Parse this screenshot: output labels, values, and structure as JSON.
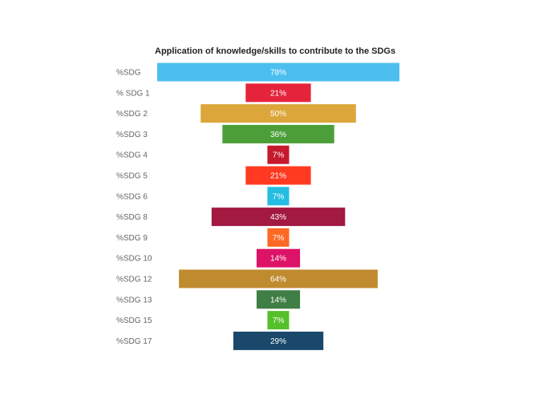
{
  "chart_data": {
    "type": "bar",
    "orientation": "horizontal-funnel",
    "title": "Application of knowledge/skills to contribute to the SDGs",
    "categories": [
      "%SDG",
      "% SDG 1",
      "%SDG 2",
      "%SDG 3",
      "%SDG 4",
      "%SDG 5",
      "%SDG 6",
      "%SDG 8",
      "%SDG 9",
      "%SDG 10",
      "%SDG 12",
      "%SDG 13",
      "%SDG 15",
      "%SDG 17"
    ],
    "values": [
      78,
      21,
      50,
      36,
      7,
      21,
      7,
      43,
      7,
      14,
      64,
      14,
      7,
      29
    ],
    "value_labels": [
      "78%",
      "21%",
      "50%",
      "36%",
      "7%",
      "21%",
      "7%",
      "43%",
      "7%",
      "14%",
      "64%",
      "14%",
      "7%",
      "29%"
    ],
    "colors": [
      "#4cbfef",
      "#e5243b",
      "#dda63a",
      "#4c9f38",
      "#c5192d",
      "#ff3a21",
      "#26bde2",
      "#a21942",
      "#fd6925",
      "#dd1367",
      "#bf8b2e",
      "#3f7e44",
      "#56c02b",
      "#19486a"
    ],
    "xlim": [
      0,
      78
    ],
    "grid": false,
    "legend": "none"
  }
}
